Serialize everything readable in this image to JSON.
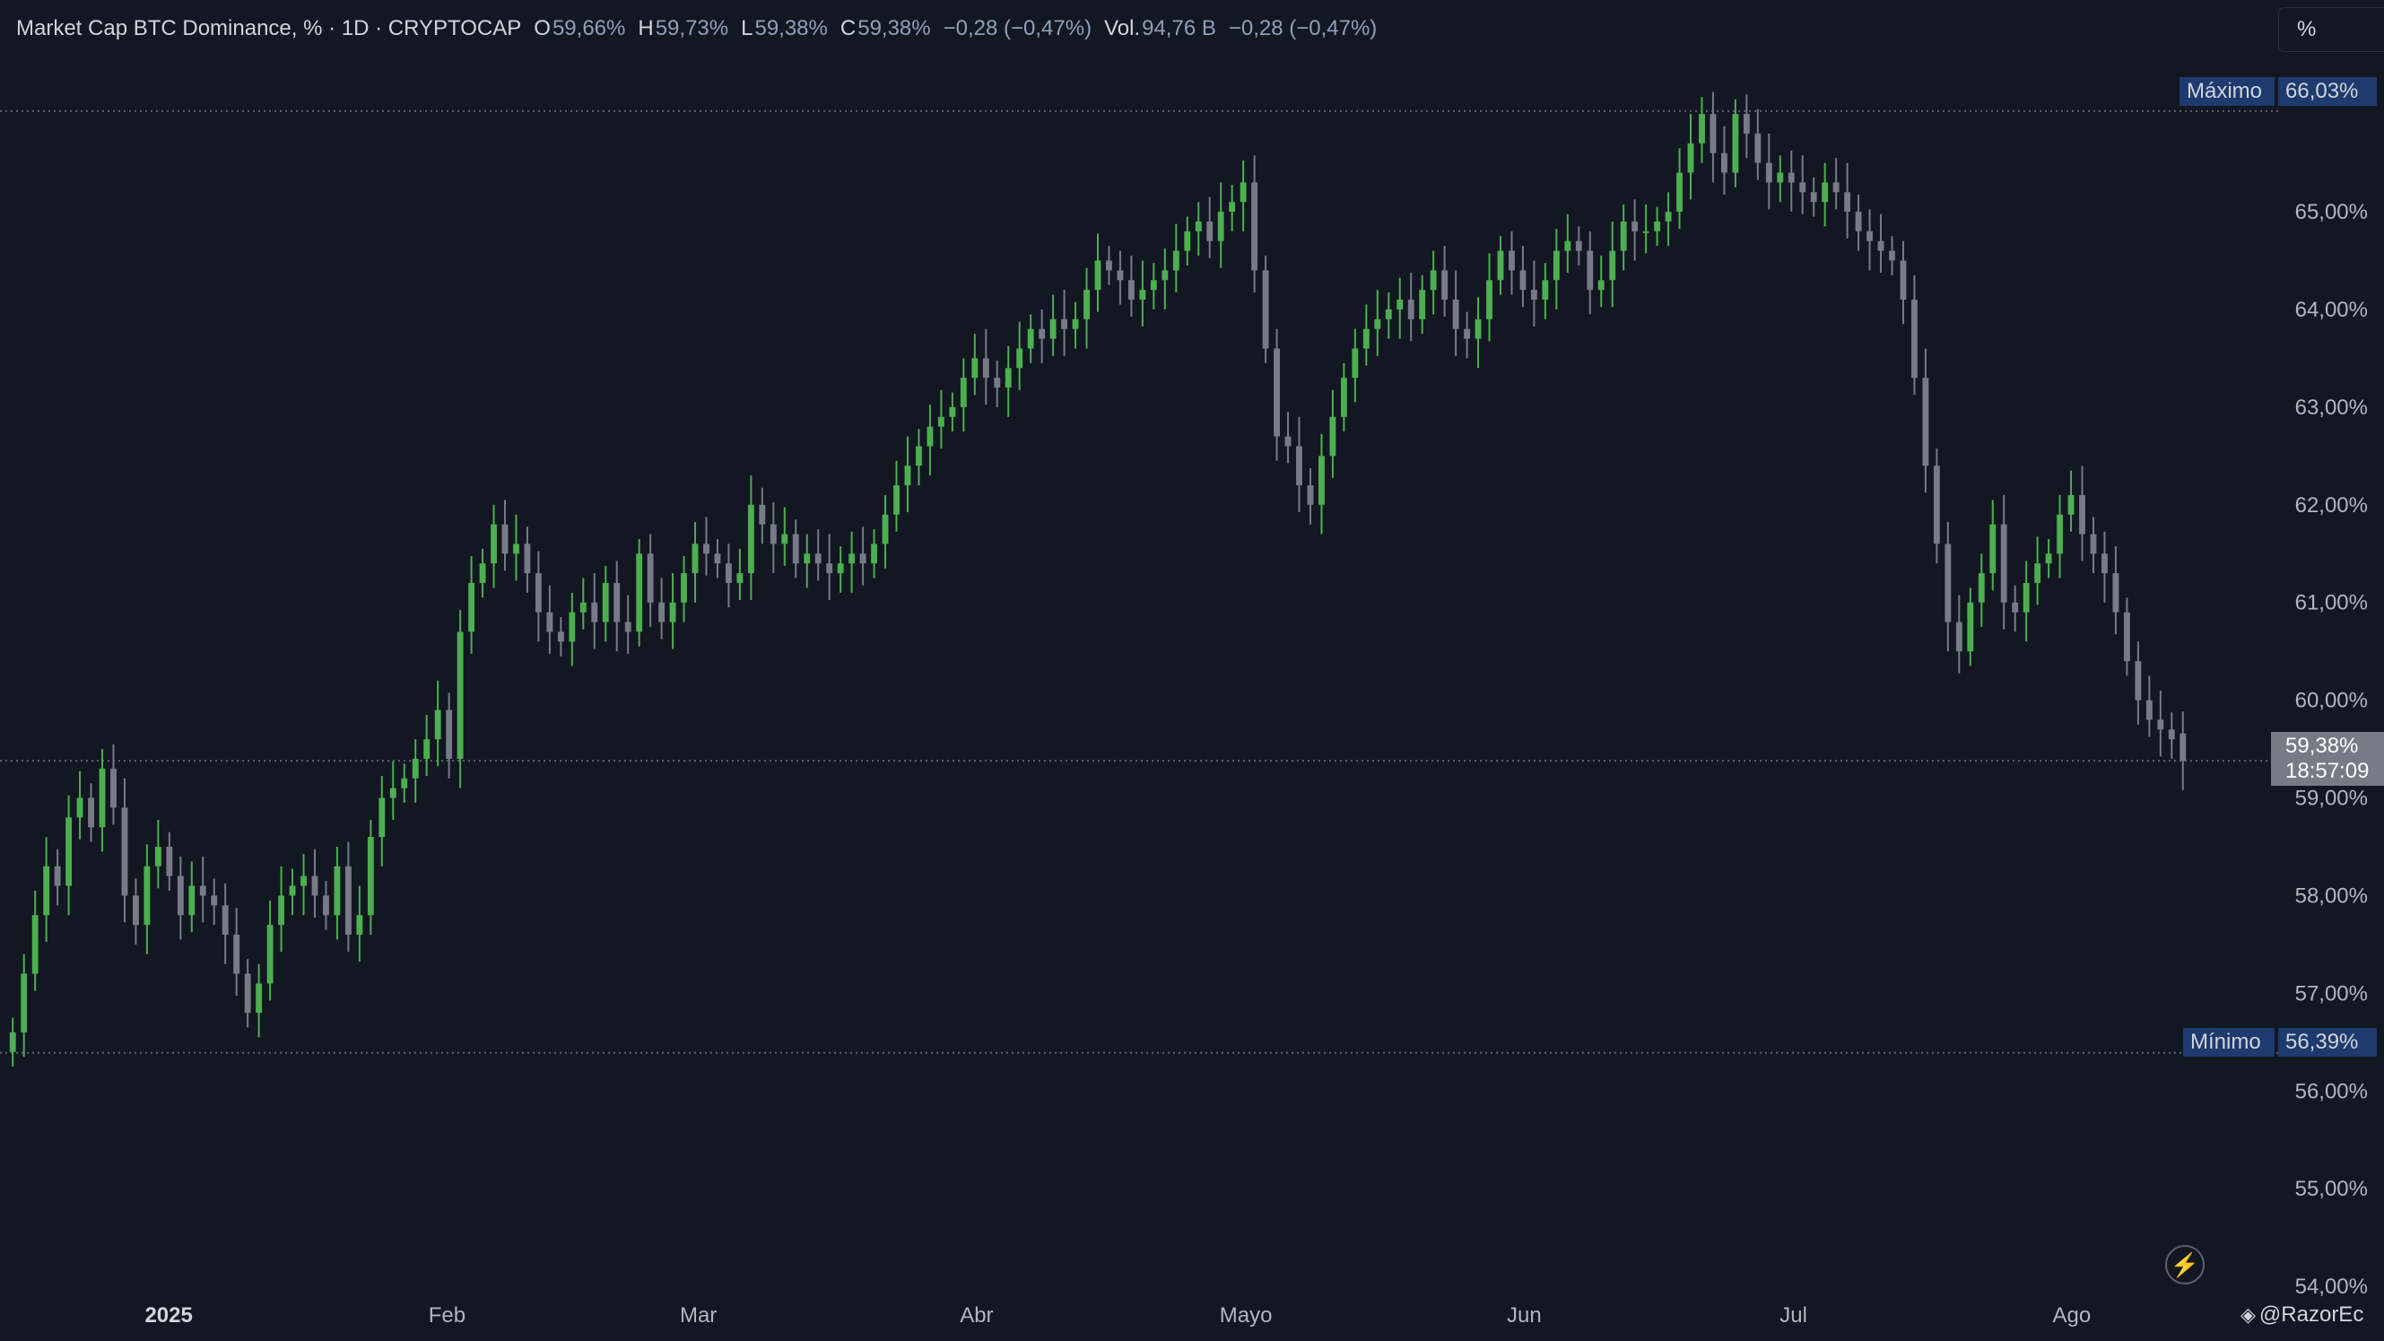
{
  "legend": {
    "title": "Market Cap BTC Dominance, % · 1D · CRYPTOCAP",
    "o_key": "O",
    "o_val": "59,66%",
    "h_key": "H",
    "h_val": "59,73%",
    "l_key": "L",
    "l_val": "59,38%",
    "c_key": "C",
    "c_val": "59,38%",
    "change": "−0,28 (−0,47%)",
    "vol_key": "Vol.",
    "vol_val": "94,76 B",
    "vol_change": "−0,28 (−0,47%)"
  },
  "scale_mode": "%",
  "badges": {
    "max_label": "Máximo",
    "max_value": "66,03%",
    "min_label": "Mínimo",
    "min_value": "56,39%",
    "last_value": "59,38%",
    "countdown": "18:57:09"
  },
  "watermark": "@RazorEc",
  "colors": {
    "background": "#131722",
    "up": "#4caf50",
    "down": "#787b86",
    "badge": "#1e3a6e",
    "last": "#787b86"
  },
  "chart_data": {
    "type": "candlestick",
    "ylim": [
      53.9,
      66.8
    ],
    "y_ticks": [
      "54,00%",
      "55,00%",
      "56,00%",
      "57,00%",
      "58,00%",
      "59,00%",
      "60,00%",
      "61,00%",
      "62,00%",
      "63,00%",
      "64,00%",
      "65,00%"
    ],
    "x_ticks": [
      {
        "label": "2025",
        "day": 0,
        "bold": true
      },
      {
        "label": "Feb",
        "day": 31
      },
      {
        "label": "Mar",
        "day": 59
      },
      {
        "label": "Abr",
        "day": 90
      },
      {
        "label": "Mayo",
        "day": 120
      },
      {
        "label": "Jun",
        "day": 151
      },
      {
        "label": "Jul",
        "day": 181
      },
      {
        "label": "Ago",
        "day": 212
      }
    ],
    "first_day": -18,
    "last_day": 225,
    "max_level": 66.03,
    "min_level": 56.39,
    "last_close": 59.38,
    "closes": [
      56.6,
      57.2,
      57.8,
      58.3,
      58.1,
      58.8,
      59.0,
      58.7,
      59.3,
      58.9,
      58.0,
      57.7,
      58.3,
      58.5,
      58.2,
      57.8,
      58.1,
      58.0,
      57.9,
      57.6,
      57.2,
      56.8,
      57.1,
      57.7,
      58.0,
      58.1,
      58.2,
      58.0,
      57.8,
      58.3,
      57.6,
      57.8,
      58.6,
      59.0,
      59.1,
      59.2,
      59.4,
      59.6,
      59.9,
      59.4,
      60.7,
      61.2,
      61.4,
      61.8,
      61.5,
      61.6,
      61.3,
      60.9,
      60.7,
      60.6,
      60.9,
      61.0,
      60.8,
      61.2,
      60.8,
      60.7,
      61.5,
      61.0,
      60.8,
      61.0,
      61.3,
      61.6,
      61.5,
      61.4,
      61.2,
      61.3,
      62.0,
      61.8,
      61.6,
      61.7,
      61.4,
      61.5,
      61.4,
      61.3,
      61.4,
      61.5,
      61.4,
      61.6,
      61.9,
      62.2,
      62.4,
      62.6,
      62.8,
      62.9,
      63.0,
      63.3,
      63.5,
      63.3,
      63.2,
      63.4,
      63.6,
      63.8,
      63.7,
      63.9,
      63.8,
      63.9,
      64.2,
      64.5,
      64.4,
      64.3,
      64.1,
      64.2,
      64.3,
      64.4,
      64.6,
      64.8,
      64.9,
      64.7,
      65.0,
      65.1,
      65.3,
      64.4,
      63.6,
      62.7,
      62.6,
      62.2,
      62.0,
      62.5,
      62.9,
      63.3,
      63.6,
      63.8,
      63.9,
      64.0,
      64.1,
      63.9,
      64.2,
      64.4,
      64.1,
      63.8,
      63.7,
      63.9,
      64.3,
      64.6,
      64.4,
      64.2,
      64.1,
      64.3,
      64.6,
      64.7,
      64.6,
      64.2,
      64.3,
      64.6,
      64.9,
      64.8,
      64.8,
      64.9,
      65.0,
      65.4,
      65.7,
      66.0,
      65.6,
      65.4,
      66.0,
      65.8,
      65.5,
      65.3,
      65.4,
      65.3,
      65.2,
      65.1,
      65.3,
      65.2,
      65.0,
      64.8,
      64.7,
      64.6,
      64.5,
      64.1,
      63.3,
      62.4,
      61.6,
      60.8,
      60.5,
      61.0,
      61.3,
      61.8,
      61.0,
      60.9,
      61.2,
      61.4,
      61.5,
      61.9,
      62.1,
      61.7,
      61.5,
      61.3,
      60.9,
      60.4,
      60.0,
      59.8,
      59.7,
      59.6,
      59.38
    ],
    "opens": [
      56.4,
      56.6,
      57.2,
      57.8,
      58.3,
      58.1,
      58.8,
      59.0,
      58.7,
      59.3,
      58.9,
      58.0,
      57.7,
      58.3,
      58.5,
      58.2,
      57.8,
      58.1,
      58.0,
      57.9,
      57.6,
      57.2,
      56.8,
      57.1,
      57.7,
      58.0,
      58.1,
      58.2,
      58.0,
      57.8,
      58.3,
      57.6,
      57.8,
      58.6,
      59.0,
      59.1,
      59.2,
      59.4,
      59.6,
      59.9,
      59.4,
      60.7,
      61.2,
      61.4,
      61.8,
      61.5,
      61.6,
      61.3,
      60.9,
      60.7,
      60.6,
      60.9,
      61.0,
      60.8,
      61.2,
      60.8,
      60.7,
      61.5,
      61.0,
      60.8,
      61.0,
      61.3,
      61.6,
      61.5,
      61.4,
      61.2,
      61.3,
      62.0,
      61.8,
      61.6,
      61.7,
      61.4,
      61.5,
      61.4,
      61.3,
      61.4,
      61.5,
      61.4,
      61.6,
      61.9,
      62.2,
      62.4,
      62.6,
      62.8,
      62.9,
      63.0,
      63.3,
      63.5,
      63.3,
      63.2,
      63.4,
      63.6,
      63.8,
      63.7,
      63.9,
      63.8,
      63.9,
      64.2,
      64.5,
      64.4,
      64.3,
      64.1,
      64.2,
      64.3,
      64.4,
      64.6,
      64.8,
      64.9,
      64.7,
      65.0,
      65.1,
      65.3,
      64.4,
      63.6,
      62.7,
      62.6,
      62.2,
      62.0,
      62.5,
      62.9,
      63.3,
      63.6,
      63.8,
      63.9,
      64.0,
      64.1,
      63.9,
      64.2,
      64.4,
      64.1,
      63.8,
      63.7,
      63.9,
      64.3,
      64.6,
      64.4,
      64.2,
      64.1,
      64.3,
      64.6,
      64.7,
      64.6,
      64.2,
      64.3,
      64.6,
      64.9,
      64.8,
      64.8,
      64.9,
      65.0,
      65.4,
      65.7,
      66.0,
      65.6,
      65.4,
      66.0,
      65.8,
      65.5,
      65.3,
      65.4,
      65.3,
      65.2,
      65.1,
      65.3,
      65.2,
      65.0,
      64.8,
      64.7,
      64.6,
      64.5,
      64.1,
      63.3,
      62.4,
      61.6,
      60.8,
      60.5,
      61.0,
      61.3,
      61.8,
      61.0,
      60.9,
      61.2,
      61.4,
      61.5,
      61.9,
      62.1,
      61.7,
      61.5,
      61.3,
      60.9,
      60.4,
      60.0,
      59.8,
      59.7,
      59.66
    ]
  }
}
